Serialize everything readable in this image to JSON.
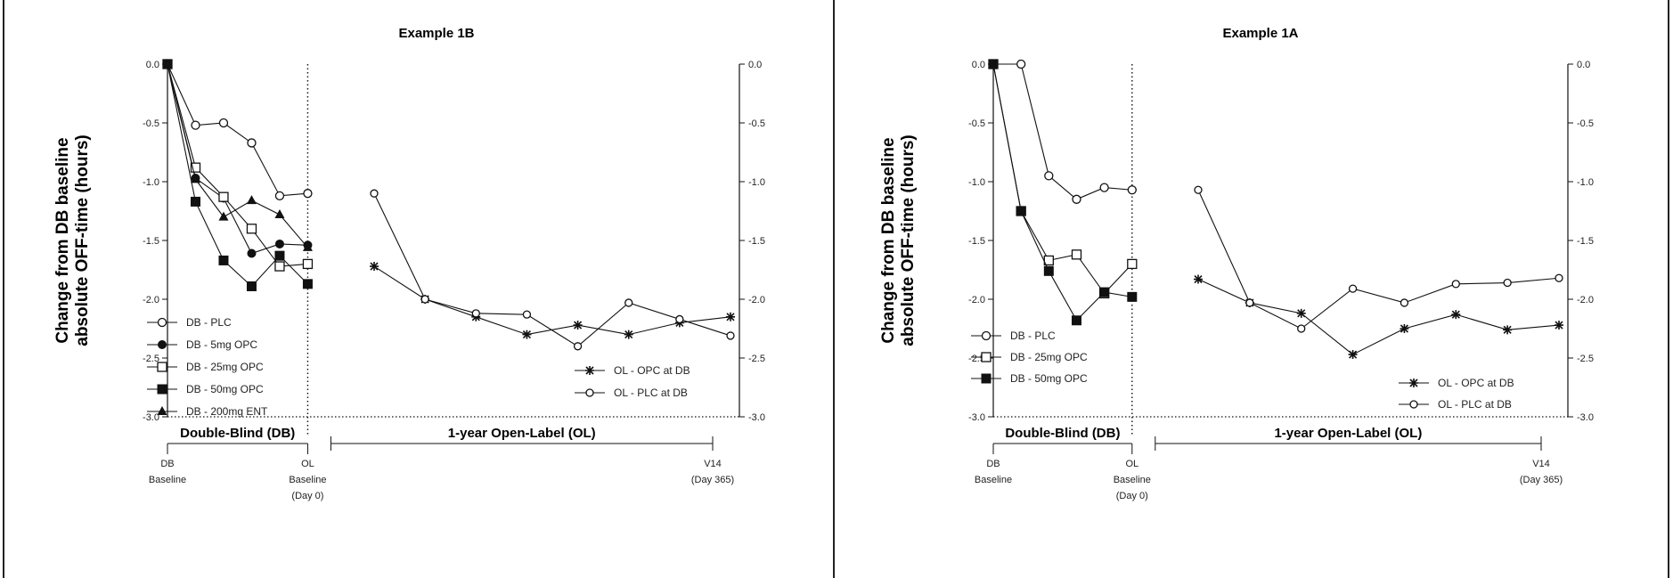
{
  "chart_data": [
    {
      "type": "line",
      "title": "Example 1B",
      "ylabel": "Change from DB baseline absolute OFF-time (hours)",
      "ylabel_lines": [
        "Change from DB baseline",
        "absolute OFF-time (hours)"
      ],
      "ylim": [
        -3.0,
        0.0
      ],
      "yticks": [
        "0.0",
        "-0.5",
        "-1.0",
        "-1.5",
        "-2.0",
        "-2.5",
        "-3.0"
      ],
      "ytick_values": [
        0,
        -0.5,
        -1,
        -1.5,
        -2,
        -2.5,
        -3
      ],
      "x_axis_labels": [
        {
          "label": [
            "DB",
            "Baseline"
          ],
          "pos": 0
        },
        {
          "label": [
            "OL",
            "Baseline",
            "(Day 0)"
          ],
          "pos": 5
        },
        {
          "label": [
            "V14",
            "(Day 365)"
          ],
          "pos": 17
        }
      ],
      "phases": {
        "double_blind": "Double-Blind (DB)",
        "open_label": "1-year Open-Label (OL)"
      },
      "series": [
        {
          "name": "DB - PLC",
          "marker": "open-circle",
          "x": [
            0,
            1,
            2,
            3,
            4,
            5
          ],
          "values": [
            0.0,
            -0.52,
            -0.5,
            -0.67,
            -1.12,
            -1.1
          ]
        },
        {
          "name": "DB - 5mg OPC",
          "marker": "filled-circle",
          "x": [
            0,
            1,
            2,
            3,
            4,
            5
          ],
          "values": [
            0.0,
            -0.97,
            -1.14,
            -1.61,
            -1.53,
            -1.54
          ]
        },
        {
          "name": "DB - 25mg OPC",
          "marker": "open-square",
          "x": [
            0,
            1,
            2,
            3,
            4,
            5
          ],
          "values": [
            0.0,
            -0.88,
            -1.13,
            -1.4,
            -1.72,
            -1.7
          ]
        },
        {
          "name": "DB - 50mg OPC",
          "marker": "filled-square",
          "x": [
            0,
            1,
            2,
            3,
            4,
            5
          ],
          "values": [
            0.0,
            -1.17,
            -1.67,
            -1.89,
            -1.63,
            -1.87
          ]
        },
        {
          "name": "DB - 200mg ENT",
          "marker": "filled-triangle",
          "x": [
            0,
            1,
            2,
            3,
            4,
            5
          ],
          "values": [
            0.0,
            -0.98,
            -1.3,
            -1.16,
            -1.28,
            -1.56
          ]
        },
        {
          "name": "OL - OPC at DB",
          "marker": "star",
          "x": [
            6,
            8,
            10,
            12,
            14,
            16,
            18,
            20
          ],
          "values": [
            -1.72,
            -2.0,
            -2.15,
            -2.3,
            -2.22,
            -2.3,
            -2.2,
            -2.15
          ]
        },
        {
          "name": "OL - PLC at DB",
          "marker": "open-circle-small",
          "x": [
            6,
            8,
            10,
            12,
            14,
            16,
            18,
            20
          ],
          "values": [
            -1.1,
            -2.0,
            -2.12,
            -2.13,
            -2.4,
            -2.03,
            -2.17,
            -2.31
          ]
        }
      ]
    },
    {
      "type": "line",
      "title": "Example 1A",
      "ylabel": "Change from DB baseline absolute OFF-time (hours)",
      "ylabel_lines": [
        "Change from DB baseline",
        "absolute OFF-time (hours)"
      ],
      "ylim": [
        -3.0,
        0.0
      ],
      "yticks": [
        "0.0",
        "-0.5",
        "-1.0",
        "-1.5",
        "-2.0",
        "-2.5",
        "-3.0"
      ],
      "ytick_values": [
        0,
        -0.5,
        -1,
        -1.5,
        -2,
        -2.5,
        -3
      ],
      "x_axis_labels": [
        {
          "label": [
            "DB",
            "Baseline"
          ],
          "pos": 0
        },
        {
          "label": [
            "OL",
            "Baseline",
            "(Day 0)"
          ],
          "pos": 5
        },
        {
          "label": [
            "V14",
            "(Day 365)"
          ],
          "pos": 17
        }
      ],
      "phases": {
        "double_blind": "Double-Blind (DB)",
        "open_label": "1-year Open-Label (OL)"
      },
      "series": [
        {
          "name": "DB - PLC",
          "marker": "open-circle",
          "x": [
            0,
            1,
            2,
            3,
            4,
            5
          ],
          "values": [
            0.0,
            0.0,
            -0.95,
            -1.15,
            -1.05,
            -1.07
          ]
        },
        {
          "name": "DB - 25mg OPC",
          "marker": "open-square",
          "x": [
            0,
            1,
            2,
            3,
            4,
            5
          ],
          "values": [
            0.0,
            -1.25,
            -1.67,
            -1.62,
            -1.95,
            -1.7
          ]
        },
        {
          "name": "DB - 50mg OPC",
          "marker": "filled-square",
          "x": [
            0,
            1,
            2,
            3,
            4,
            5
          ],
          "values": [
            0.0,
            -1.25,
            -1.76,
            -2.18,
            -1.94,
            -1.98
          ]
        },
        {
          "name": "OL - OPC at DB",
          "marker": "star",
          "x": [
            6,
            8,
            10,
            12,
            14,
            16,
            18,
            20
          ],
          "values": [
            -1.83,
            -2.03,
            -2.12,
            -2.47,
            -2.25,
            -2.13,
            -2.26,
            -2.22
          ]
        },
        {
          "name": "OL - PLC at DB",
          "marker": "open-circle-small",
          "x": [
            6,
            8,
            10,
            12,
            14,
            16,
            18,
            20
          ],
          "values": [
            -1.07,
            -2.03,
            -2.25,
            -1.91,
            -2.03,
            -1.87,
            -1.86,
            -1.82
          ]
        }
      ]
    }
  ]
}
